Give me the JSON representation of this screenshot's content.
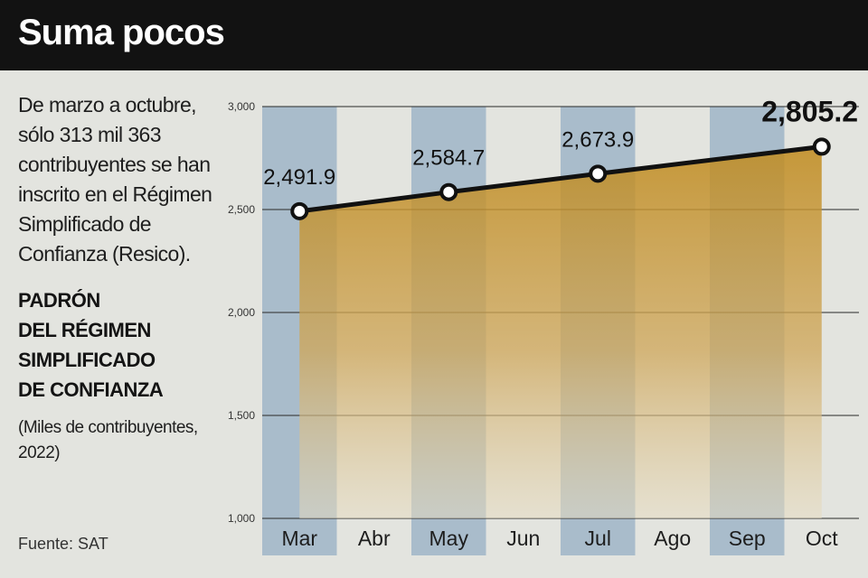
{
  "header": {
    "title": "Suma pocos"
  },
  "description": "De marzo a octubre, sólo 313 mil 363 contribuyentes se han inscrito en el Régimen Simplificado de Confianza (Resico).",
  "chart_heading": [
    "PADRÓN",
    "DEL RÉGIMEN",
    "SIMPLIFICADO",
    "DE CONFIANZA"
  ],
  "units": "(Miles de contribuyentes, 2022)",
  "source": "Fuente: SAT",
  "chart_data": {
    "type": "area",
    "categories": [
      "Mar",
      "Abr",
      "May",
      "Jun",
      "Jul",
      "Ago",
      "Sep",
      "Oct"
    ],
    "points": [
      {
        "x": "Mar",
        "y": 2491.9,
        "label": "2,491.9"
      },
      {
        "x": "May",
        "y": 2584.7,
        "label": "2,584.7"
      },
      {
        "x": "Jul",
        "y": 2673.9,
        "label": "2,673.9"
      },
      {
        "x": "Oct",
        "y": 2805.2,
        "label": "2,805.2"
      }
    ],
    "yticks": [
      {
        "value": 1000,
        "label": "1,000"
      },
      {
        "value": 1500,
        "label": "1,500"
      },
      {
        "value": 2000,
        "label": "2,000"
      },
      {
        "value": 2500,
        "label": "2,500"
      },
      {
        "value": 3000,
        "label": "3,000"
      }
    ],
    "ylim": [
      1000,
      3000
    ],
    "highlighted_months": [
      "Mar",
      "May",
      "Jul",
      "Sep"
    ],
    "colors": {
      "band": "#a9bccb",
      "fill_top": "#c08a1c",
      "fill_bottom": "#e7dcc0",
      "line": "#111111"
    }
  }
}
